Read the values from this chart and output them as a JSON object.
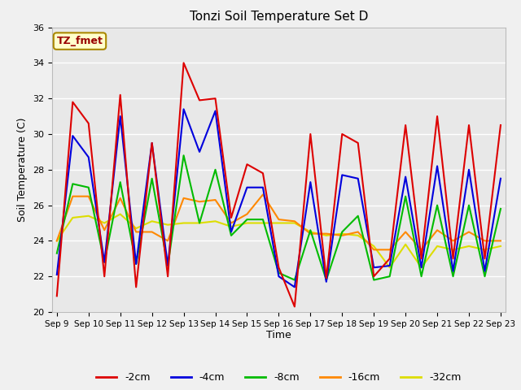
{
  "title": "Tonzi Soil Temperature Set D",
  "xlabel": "Time",
  "ylabel": "Soil Temperature (C)",
  "ylim": [
    20,
    36
  ],
  "annotation": "TZ_fmet",
  "fig_bg": "#f0f0f0",
  "axes_bg": "#e8e8e8",
  "series": {
    "-2cm": {
      "color": "#dd0000",
      "lw": 1.5
    },
    "-4cm": {
      "color": "#0000dd",
      "lw": 1.5
    },
    "-8cm": {
      "color": "#00bb00",
      "lw": 1.5
    },
    "-16cm": {
      "color": "#ff8800",
      "lw": 1.5
    },
    "-32cm": {
      "color": "#dddd00",
      "lw": 1.5
    }
  },
  "xtick_labels": [
    "Sep 9",
    "Sep 10",
    "Sep 11",
    "Sep 12",
    "Sep 13",
    "Sep 14",
    "Sep 15",
    "Sep 16",
    "Sep 17",
    "Sep 18",
    "Sep 19",
    "Sep 20",
    "Sep 21",
    "Sep 22",
    "Sep 23"
  ],
  "x": [
    0,
    1,
    2,
    3,
    4,
    5,
    6,
    7,
    8,
    9,
    10,
    11,
    12,
    13,
    14,
    15,
    16,
    17,
    18,
    19,
    20,
    21,
    22,
    23,
    24,
    25,
    26,
    27,
    28
  ],
  "y_2cm": [
    20.9,
    31.8,
    30.6,
    22.0,
    32.2,
    21.4,
    29.5,
    22.0,
    34.0,
    31.9,
    32.0,
    25.3,
    28.3,
    27.8,
    22.5,
    20.3,
    30.0,
    21.9,
    30.0,
    29.5,
    22.0,
    23.0,
    30.5,
    23.0,
    31.0,
    23.0,
    30.5,
    23.0,
    30.5
  ],
  "y_4cm": [
    22.1,
    29.9,
    28.7,
    22.8,
    31.0,
    22.7,
    29.5,
    22.6,
    31.4,
    29.0,
    31.3,
    24.5,
    27.0,
    27.0,
    22.0,
    21.4,
    27.3,
    21.7,
    27.7,
    27.5,
    22.5,
    22.6,
    27.6,
    22.5,
    28.2,
    22.3,
    28.0,
    22.3,
    27.5
  ],
  "y_8cm": [
    23.3,
    27.2,
    27.0,
    22.8,
    27.3,
    22.7,
    27.5,
    22.6,
    28.8,
    25.0,
    28.0,
    24.3,
    25.2,
    25.2,
    22.2,
    21.8,
    24.6,
    21.8,
    24.5,
    25.4,
    21.8,
    22.0,
    26.5,
    22.0,
    26.0,
    22.0,
    26.0,
    22.0,
    25.8
  ],
  "y_16cm": [
    24.0,
    26.5,
    26.5,
    24.6,
    26.4,
    24.5,
    24.5,
    24.0,
    26.4,
    26.2,
    26.3,
    25.0,
    25.5,
    26.6,
    25.2,
    25.1,
    24.4,
    24.4,
    24.3,
    24.5,
    23.5,
    23.5,
    24.5,
    23.5,
    24.6,
    24.0,
    24.5,
    24.0,
    24.0
  ],
  "y_32cm": [
    24.0,
    25.3,
    25.4,
    25.0,
    25.5,
    24.7,
    25.1,
    24.9,
    25.0,
    25.0,
    25.1,
    24.8,
    25.0,
    25.0,
    25.0,
    25.0,
    24.5,
    24.3,
    24.4,
    24.3,
    23.7,
    22.5,
    23.8,
    22.5,
    23.7,
    23.5,
    23.7,
    23.5,
    23.7
  ]
}
